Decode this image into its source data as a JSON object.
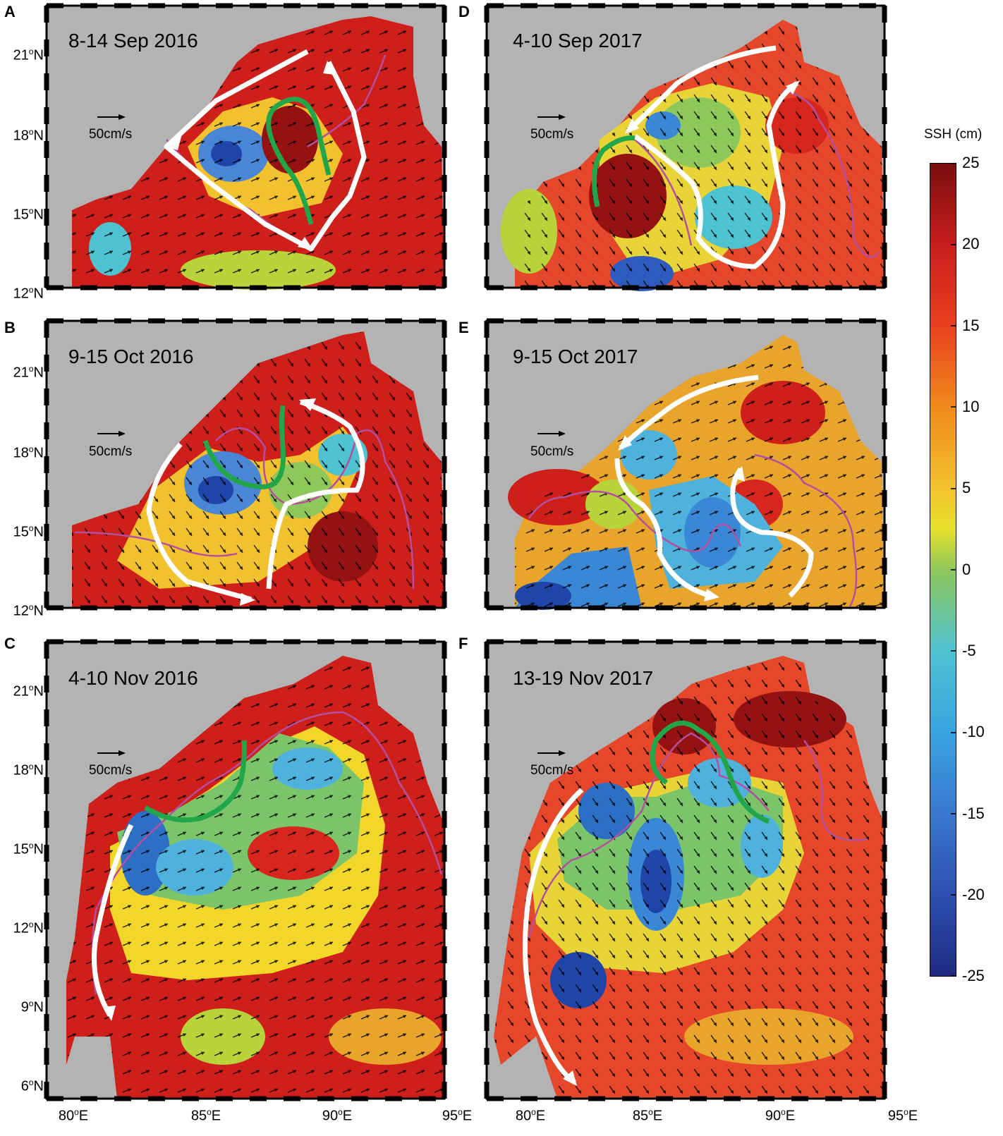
{
  "panels": [
    {
      "id": "A",
      "title": "8-14 Sep 2016"
    },
    {
      "id": "B",
      "title": "9-15 Oct 2016"
    },
    {
      "id": "C",
      "title": "4-10 Nov 2016"
    },
    {
      "id": "D",
      "title": "4-10 Sep 2017"
    },
    {
      "id": "E",
      "title": "9-15 Oct 2017"
    },
    {
      "id": "F",
      "title": "13-19 Nov 2017"
    }
  ],
  "scale_arrow_label": "50cm/s",
  "lat_labels_short": [
    {
      "deg": "21",
      "hem": "N"
    },
    {
      "deg": "18",
      "hem": "N"
    },
    {
      "deg": "15",
      "hem": "N"
    },
    {
      "deg": "12",
      "hem": "N"
    }
  ],
  "lat_labels_long": [
    {
      "deg": "21",
      "hem": "N"
    },
    {
      "deg": "18",
      "hem": "N"
    },
    {
      "deg": "15",
      "hem": "N"
    },
    {
      "deg": "12",
      "hem": "N"
    },
    {
      "deg": "9",
      "hem": "N"
    },
    {
      "deg": "6",
      "hem": "N"
    }
  ],
  "lon_labels": [
    {
      "deg": "80",
      "hem": "E"
    },
    {
      "deg": "85",
      "hem": "E"
    },
    {
      "deg": "90",
      "hem": "E"
    },
    {
      "deg": "95",
      "hem": "E"
    }
  ],
  "colorbar": {
    "title": "SSH (cm)",
    "ticks": [
      "25",
      "20",
      "15",
      "10",
      "5",
      "0",
      "-5",
      "-10",
      "-15",
      "-20",
      "-25"
    ]
  },
  "colors": {
    "land": "#b3b3b3",
    "pathway_white": "#ffffff",
    "pathway_green": "#22a64a",
    "contour_magenta": "#b44fa0"
  }
}
